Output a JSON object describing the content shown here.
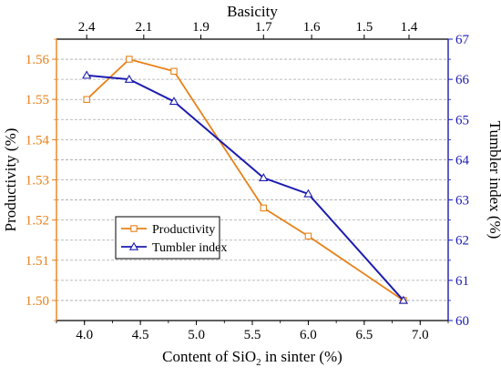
{
  "chart_data": {
    "type": "line",
    "x": [
      4.02,
      4.4,
      4.8,
      5.6,
      6.0,
      6.85
    ],
    "xlabel_prefix": "Content of SiO",
    "xlabel_sub": "2",
    "xlabel_suffix": " in sinter (%)",
    "xlim": [
      3.75,
      7.25
    ],
    "xticks": [
      4.0,
      4.5,
      5.0,
      5.5,
      6.0,
      6.5,
      7.0
    ],
    "xtick_labels": [
      "4.0",
      "4.5",
      "5.0",
      "5.5",
      "6.0",
      "6.5",
      "7.0"
    ],
    "top_axis": {
      "label": "Basicity",
      "tick_labels": [
        "2.4",
        "2.1",
        "1.9",
        "1.7",
        "1.6",
        "1.5",
        "1.4"
      ],
      "tick_positions_sio2": [
        4.02,
        4.53,
        5.04,
        5.6,
        6.03,
        6.5,
        6.9
      ]
    },
    "left_axis": {
      "label": "Productivity (%)",
      "ylim": [
        1.495,
        1.565
      ],
      "ticks": [
        1.5,
        1.51,
        1.52,
        1.53,
        1.54,
        1.55,
        1.56
      ],
      "tick_labels": [
        "1.50",
        "1.51",
        "1.52",
        "1.53",
        "1.54",
        "1.55",
        "1.56"
      ],
      "color": "#e8811a"
    },
    "right_axis": {
      "label": "Tumbler index (%)",
      "ylim": [
        60,
        67
      ],
      "ticks": [
        60,
        61,
        62,
        63,
        64,
        65,
        66,
        67
      ],
      "tick_labels": [
        "60",
        "61",
        "62",
        "63",
        "64",
        "65",
        "66",
        "67"
      ],
      "color": "#1c1cb0"
    },
    "series": [
      {
        "name": "Productivity",
        "axis": "left",
        "marker": "square",
        "color": "#e8811a",
        "values": [
          1.55,
          1.56,
          1.557,
          1.523,
          1.516,
          1.5
        ]
      },
      {
        "name": "Tumbler index",
        "axis": "right",
        "marker": "triangle",
        "color": "#1c1cb0",
        "values": [
          66.1,
          66.0,
          65.45,
          63.55,
          63.15,
          60.5
        ]
      }
    ],
    "grid": "horizontal-dashed",
    "legend_position": "lower-left"
  }
}
